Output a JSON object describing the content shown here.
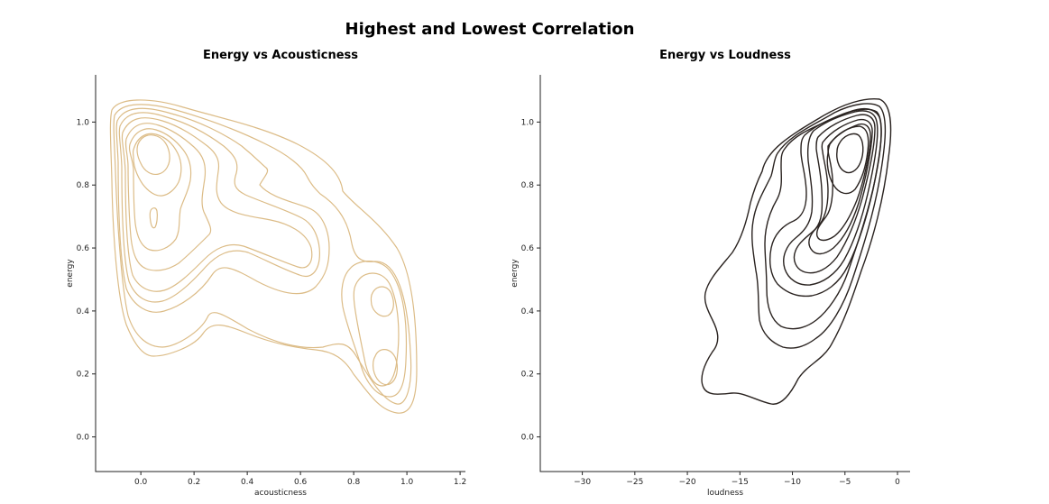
{
  "figure": {
    "title": "Highest and Lowest Correlation"
  },
  "chart_data": [
    {
      "type": "kde-contour",
      "title": "Energy vs Acousticness",
      "xlabel": "acousticness",
      "ylabel": "energy",
      "xlim": [
        -0.17,
        1.22
      ],
      "ylim": [
        -0.11,
        1.15
      ],
      "xticks": [
        "0.0",
        "0.2",
        "0.4",
        "0.6",
        "0.8",
        "1.0",
        "1.2"
      ],
      "yticks": [
        "0.0",
        "0.2",
        "0.4",
        "0.6",
        "0.8",
        "1.0"
      ],
      "color": "#dcbc87",
      "density_modes": [
        {
          "acousticness": 0.05,
          "energy": 0.9
        },
        {
          "acousticness": 0.92,
          "energy": 0.43
        },
        {
          "acousticness": 0.93,
          "energy": 0.2
        }
      ],
      "levels": 10
    },
    {
      "type": "kde-contour",
      "title": "Energy vs Loudness",
      "xlabel": "loudness",
      "ylabel": "energy",
      "xlim": [
        -34,
        1.2
      ],
      "ylim": [
        -0.11,
        1.15
      ],
      "xticks": [
        "−30",
        "−25",
        "−20",
        "−15",
        "−10",
        "−5",
        "0"
      ],
      "yticks": [
        "0.0",
        "0.2",
        "0.4",
        "0.6",
        "0.8",
        "1.0"
      ],
      "color": "#2a2320",
      "density_modes": [
        {
          "loudness": -5,
          "energy": 0.9
        }
      ],
      "levels": 10
    }
  ]
}
